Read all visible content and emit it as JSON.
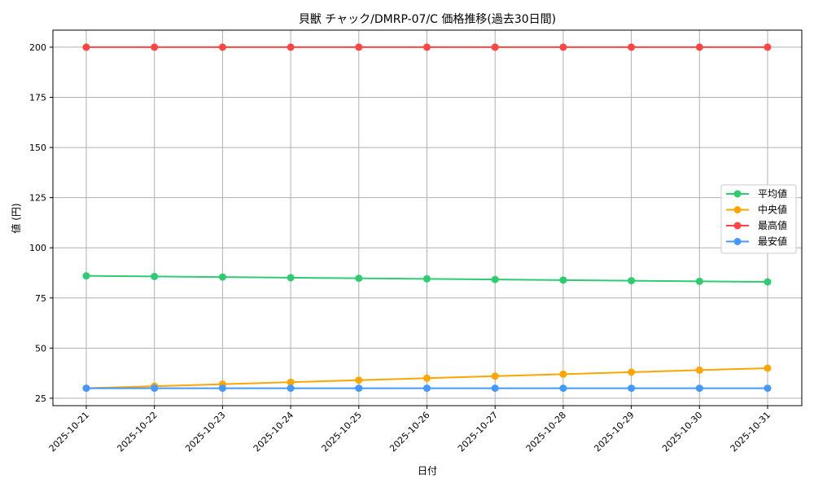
{
  "chart_data": {
    "type": "line",
    "title": "貝獣 チャック/DMRP-07/C 価格推移(過去30日間)",
    "xlabel": "日付",
    "ylabel": "値 (円)",
    "categories": [
      "2025-10-21",
      "2025-10-22",
      "2025-10-23",
      "2025-10-24",
      "2025-10-25",
      "2025-10-26",
      "2025-10-27",
      "2025-10-28",
      "2025-10-29",
      "2025-10-30",
      "2025-10-31"
    ],
    "ylim": [
      21.3,
      208.5
    ],
    "yticks": [
      25,
      50,
      75,
      100,
      125,
      150,
      175,
      200
    ],
    "grid": true,
    "legend_position": "center-right",
    "series": [
      {
        "name": "平均値",
        "color": "#2ecc71",
        "values": [
          86,
          85.7,
          85.4,
          85.1,
          84.8,
          84.5,
          84.2,
          83.9,
          83.6,
          83.3,
          83.0
        ]
      },
      {
        "name": "中央値",
        "color": "#ffa500",
        "values": [
          30,
          31,
          32,
          33,
          34,
          35,
          36,
          37,
          38,
          39,
          40
        ]
      },
      {
        "name": "最高値",
        "color": "#ff4444",
        "values": [
          200,
          200,
          200,
          200,
          200,
          200,
          200,
          200,
          200,
          200,
          200
        ]
      },
      {
        "name": "最安値",
        "color": "#4499ff",
        "values": [
          30,
          30,
          30,
          30,
          30,
          30,
          30,
          30,
          30,
          30,
          30
        ]
      }
    ]
  }
}
